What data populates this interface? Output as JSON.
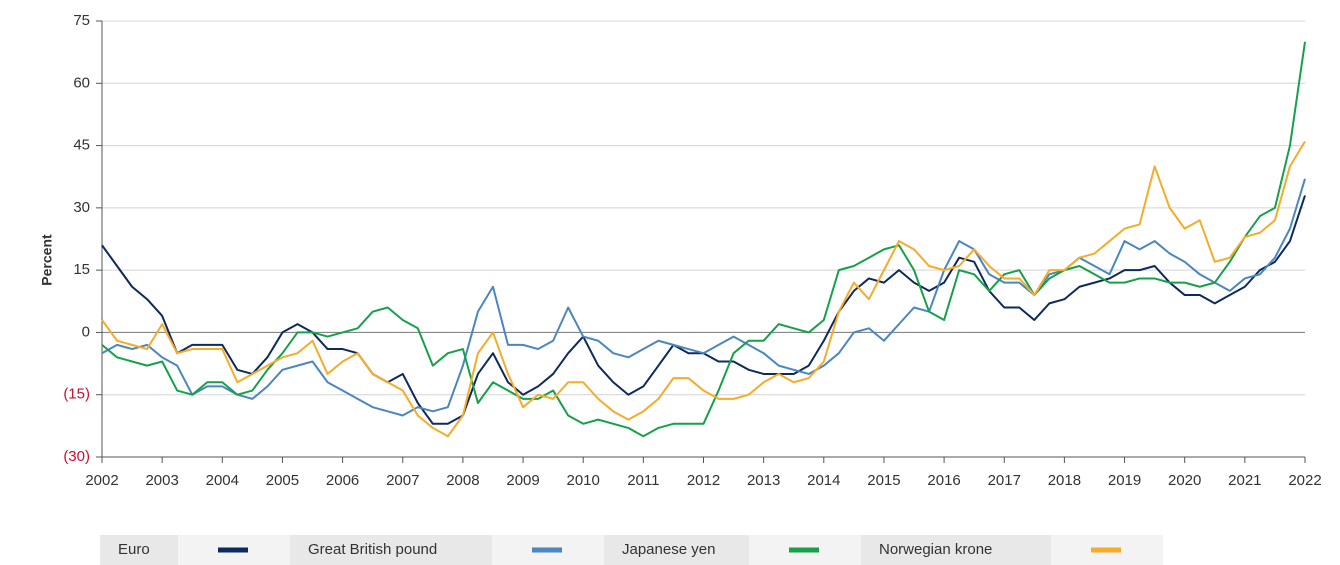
{
  "chart_data": {
    "type": "line",
    "y_label": "Percent",
    "x": [
      2002,
      2002.25,
      2002.5,
      2002.75,
      2003,
      2003.25,
      2003.5,
      2003.75,
      2004,
      2004.25,
      2004.5,
      2004.75,
      2005,
      2005.25,
      2005.5,
      2005.75,
      2006,
      2006.25,
      2006.5,
      2006.75,
      2007,
      2007.25,
      2007.5,
      2007.75,
      2008,
      2008.25,
      2008.5,
      2008.75,
      2009,
      2009.25,
      2009.5,
      2009.75,
      2010,
      2010.25,
      2010.5,
      2010.75,
      2011,
      2011.25,
      2011.5,
      2011.75,
      2012,
      2012.25,
      2012.5,
      2012.75,
      2013,
      2013.25,
      2013.5,
      2013.75,
      2014,
      2014.25,
      2014.5,
      2014.75,
      2015,
      2015.25,
      2015.5,
      2015.75,
      2016,
      2016.25,
      2016.5,
      2016.75,
      2017,
      2017.25,
      2017.5,
      2017.75,
      2018,
      2018.25,
      2018.5,
      2018.75,
      2019,
      2019.25,
      2019.5,
      2019.75,
      2020,
      2020.25,
      2020.5,
      2020.75,
      2021,
      2021.25,
      2021.5,
      2021.75,
      2022
    ],
    "xlim": [
      2002,
      2022
    ],
    "xticks": [
      2002,
      2003,
      2004,
      2005,
      2006,
      2007,
      2008,
      2009,
      2010,
      2011,
      2012,
      2013,
      2014,
      2015,
      2016,
      2017,
      2018,
      2019,
      2020,
      2021,
      2022
    ],
    "ylim": [
      -30,
      75
    ],
    "yticks": [
      {
        "value": -30,
        "label": "(30)"
      },
      {
        "value": -15,
        "label": "(15)"
      },
      0,
      15,
      30,
      45,
      60,
      75
    ],
    "negative_tick_color": "#c8102e",
    "grid": true,
    "series": [
      {
        "name": "Euro",
        "color": "#0d2a5c",
        "values": [
          21,
          16,
          11,
          8,
          4,
          -5,
          -3,
          -3,
          -3,
          -9,
          -10,
          -6,
          0,
          2,
          0,
          -4,
          -4,
          -5,
          -10,
          -12,
          -10,
          -17,
          -22,
          -22,
          -20,
          -10,
          -5,
          -12,
          -15,
          -13,
          -10,
          -5,
          -1,
          -8,
          -12,
          -15,
          -13,
          -8,
          -3,
          -5,
          -5,
          -7,
          -7,
          -9,
          -10,
          -10,
          -10,
          -8,
          -2,
          5,
          10,
          13,
          12,
          15,
          12,
          10,
          12,
          18,
          17,
          10,
          6,
          6,
          3,
          7,
          8,
          11,
          12,
          13,
          15,
          15,
          16,
          12,
          9,
          9,
          7,
          9,
          11,
          15,
          17,
          22,
          33
        ]
      },
      {
        "name": "Great British pound",
        "color": "#4a86c0",
        "values": [
          -5,
          -3,
          -4,
          -3,
          -6,
          -8,
          -15,
          -13,
          -13,
          -15,
          -16,
          -13,
          -9,
          -8,
          -7,
          -12,
          -14,
          -16,
          -18,
          -19,
          -20,
          -18,
          -19,
          -18,
          -8,
          5,
          11,
          -3,
          -3,
          -4,
          -2,
          6,
          -1,
          -2,
          -5,
          -6,
          -4,
          -2,
          -3,
          -4,
          -5,
          -3,
          -1,
          -3,
          -5,
          -8,
          -9,
          -10,
          -8,
          -5,
          0,
          1,
          -2,
          2,
          6,
          5,
          15,
          22,
          20,
          14,
          12,
          12,
          9,
          14,
          15,
          18,
          16,
          14,
          22,
          20,
          22,
          19,
          17,
          14,
          12,
          10,
          13,
          14,
          18,
          25,
          37
        ]
      },
      {
        "name": "Japanese yen",
        "color": "#16a04a",
        "values": [
          -3,
          -6,
          -7,
          -8,
          -7,
          -14,
          -15,
          -12,
          -12,
          -15,
          -14,
          -9,
          -5,
          0,
          0,
          -1,
          0,
          1,
          5,
          6,
          3,
          1,
          -8,
          -5,
          -4,
          -17,
          -12,
          -14,
          -16,
          -16,
          -14,
          -20,
          -22,
          -21,
          -22,
          -23,
          -25,
          -23,
          -22,
          -22,
          -22,
          -14,
          -5,
          -2,
          -2,
          2,
          1,
          0,
          3,
          15,
          16,
          18,
          20,
          21,
          15,
          5,
          3,
          15,
          14,
          10,
          14,
          15,
          9,
          13,
          15,
          16,
          14,
          12,
          12,
          13,
          13,
          12,
          12,
          11,
          12,
          17,
          23,
          28,
          30,
          45,
          70
        ]
      },
      {
        "name": "Norwegian krone",
        "color": "#f6ab2a",
        "values": [
          3,
          -2,
          -3,
          -4,
          2,
          -5,
          -4,
          -4,
          -4,
          -12,
          -10,
          -8,
          -6,
          -5,
          -2,
          -10,
          -7,
          -5,
          -10,
          -12,
          -14,
          -20,
          -23,
          -25,
          -20,
          -5,
          0,
          -10,
          -18,
          -15,
          -16,
          -12,
          -12,
          -16,
          -19,
          -21,
          -19,
          -16,
          -11,
          -11,
          -14,
          -16,
          -16,
          -15,
          -12,
          -10,
          -12,
          -11,
          -7,
          5,
          12,
          8,
          15,
          22,
          20,
          16,
          15,
          16,
          20,
          16,
          13,
          13,
          9,
          15,
          15,
          18,
          19,
          22,
          25,
          26,
          40,
          30,
          25,
          27,
          17,
          18,
          23,
          24,
          27,
          40,
          46
        ]
      }
    ]
  }
}
